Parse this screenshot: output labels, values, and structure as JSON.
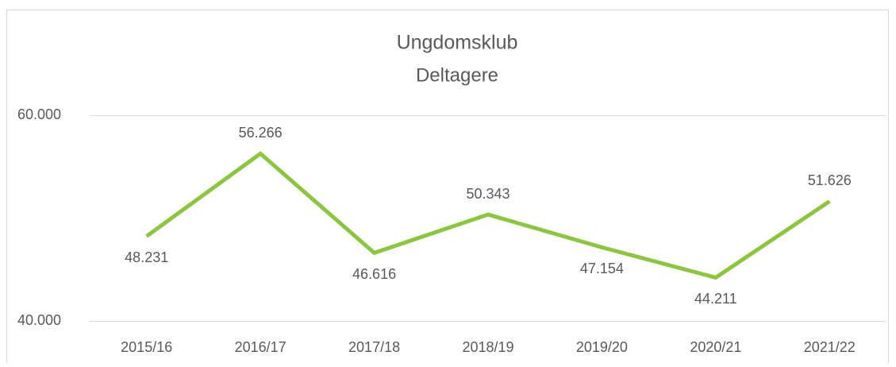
{
  "chart_data": {
    "type": "line",
    "title": "Ungdomsklub",
    "subtitle": "Deltagere",
    "categories": [
      "2015/16",
      "2016/17",
      "2017/18",
      "2018/19",
      "2019/20",
      "2020/21",
      "2021/22"
    ],
    "values": [
      48231,
      56266,
      46616,
      50343,
      47154,
      44211,
      51626
    ],
    "value_labels": [
      "48.231",
      "56.266",
      "46.616",
      "50.343",
      "47.154",
      "44.211",
      "51.626"
    ],
    "color": "#8cc63f",
    "ylim": [
      40000,
      60000
    ],
    "yticks": [
      {
        "value": 40000,
        "label": "40.000"
      },
      {
        "value": 60000,
        "label": "60.000"
      }
    ],
    "grid": true
  }
}
